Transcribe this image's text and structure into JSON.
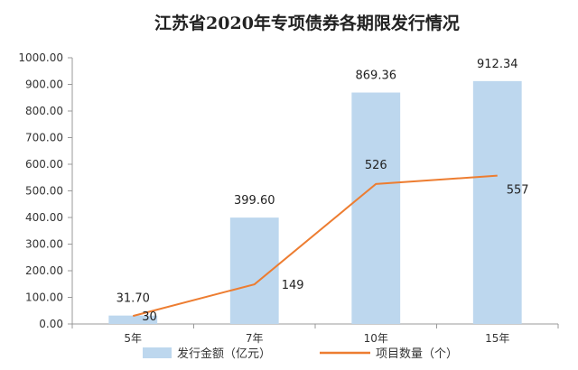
{
  "chart_data": {
    "type": "bar",
    "title": "江苏省2020年专项债券各期限发行情况",
    "categories": [
      "5年",
      "7年",
      "10年",
      "15年"
    ],
    "series": [
      {
        "name": "发行金额（亿元）",
        "type": "bar",
        "axis": "left",
        "values": [
          31.7,
          399.6,
          869.36,
          912.34
        ],
        "labels": [
          "31.70",
          "399.60",
          "869.36",
          "912.34"
        ],
        "color": "#bdd7ee"
      },
      {
        "name": "项目数量（个）",
        "type": "line",
        "axis": "left",
        "values": [
          30,
          149,
          526,
          557
        ],
        "labels": [
          "30",
          "149",
          "526",
          "557"
        ],
        "color": "#ed7d31"
      }
    ],
    "ylim": [
      0,
      1000
    ],
    "ytick_labels": [
      "0.00",
      "100.00",
      "200.00",
      "300.00",
      "400.00",
      "500.00",
      "600.00",
      "700.00",
      "800.00",
      "900.00",
      "1000.00"
    ],
    "xlabel": "",
    "ylabel": "",
    "grid": false,
    "legend_position": "bottom"
  }
}
